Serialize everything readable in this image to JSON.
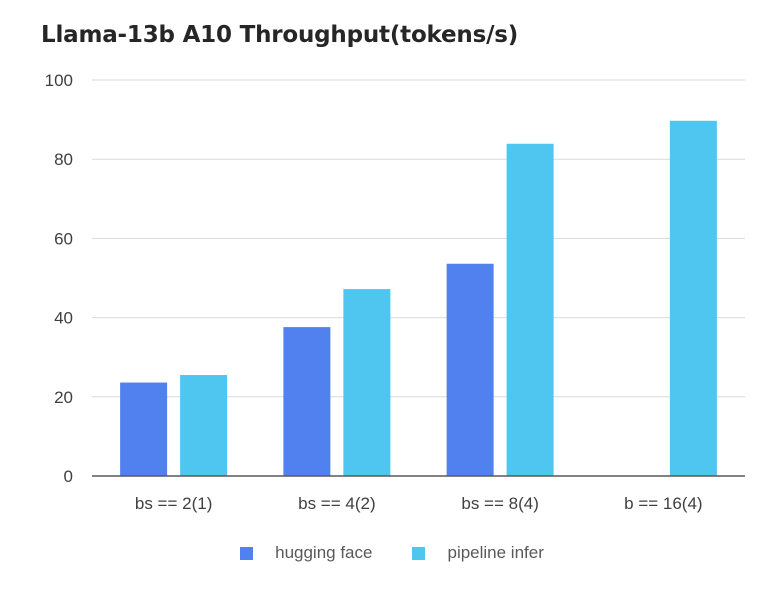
{
  "chart_data": {
    "type": "bar",
    "title": "Llama-13b A10 Throughput(tokens/s)",
    "categories": [
      "bs == 2(1)",
      "bs == 4(2)",
      "bs == 8(4)",
      "b == 16(4)"
    ],
    "series": [
      {
        "name": "hugging face",
        "values": [
          23.6,
          37.6,
          53.6,
          null
        ],
        "color": "#5081ee"
      },
      {
        "name": "pipeline infer",
        "values": [
          25.5,
          47.2,
          83.9,
          89.7
        ],
        "color": "#4fc6ef"
      }
    ],
    "ylim": [
      0,
      100
    ],
    "yticks": [
      0,
      20,
      40,
      60,
      80,
      100
    ],
    "grid": true,
    "legend": "bottom"
  }
}
